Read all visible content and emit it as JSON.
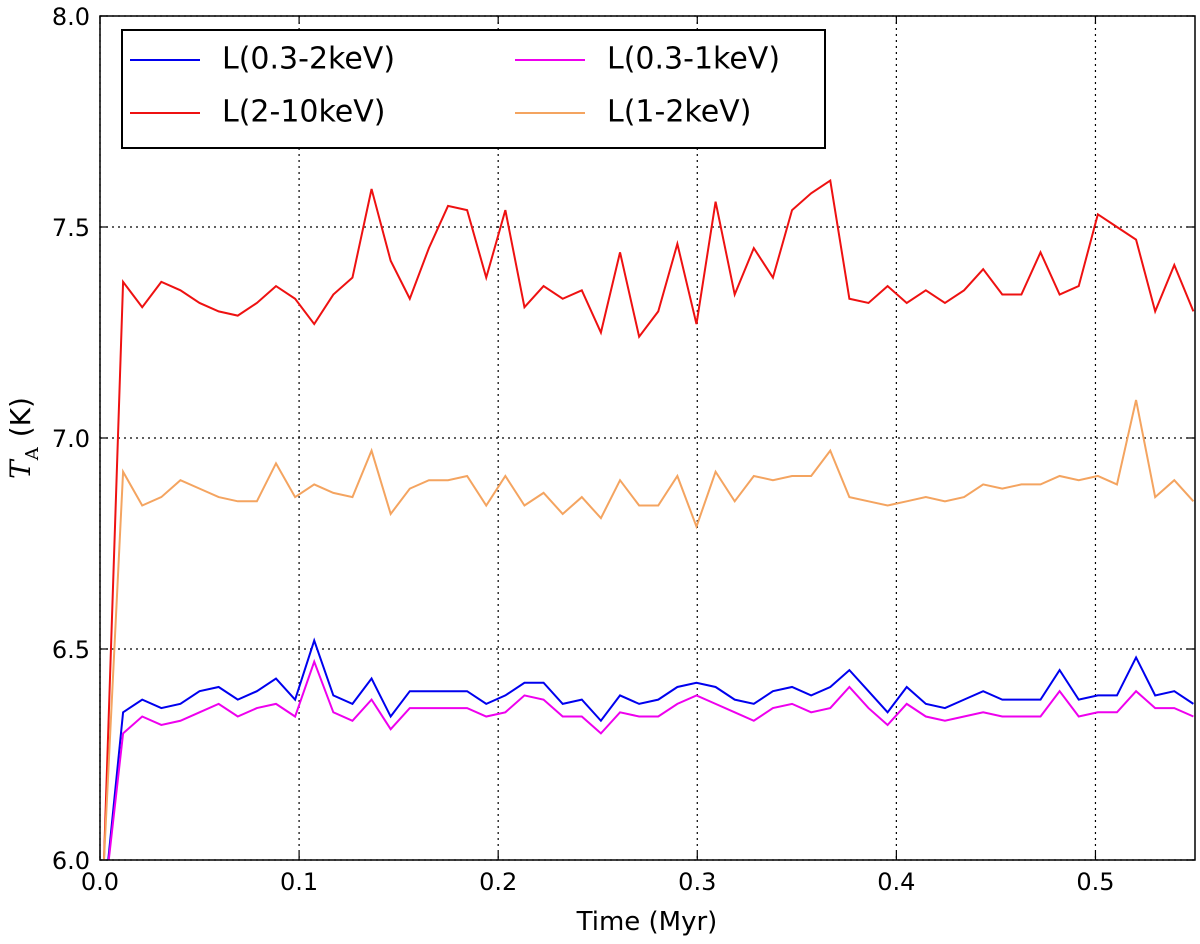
{
  "chart_data": {
    "type": "line",
    "xlabel": "Time (Myr)",
    "ylabel": {
      "symbol": "T",
      "subscript": "A",
      "unit": "(K)"
    },
    "x": [
      0.002,
      0.0116,
      0.0212,
      0.0308,
      0.0404,
      0.05,
      0.0596,
      0.0692,
      0.0788,
      0.0884,
      0.098,
      0.1076,
      0.1172,
      0.1268,
      0.1364,
      0.146,
      0.1556,
      0.1652,
      0.1748,
      0.1844,
      0.194,
      0.2036,
      0.2132,
      0.2228,
      0.2324,
      0.242,
      0.2516,
      0.2612,
      0.2708,
      0.2804,
      0.29,
      0.2996,
      0.3092,
      0.3188,
      0.3284,
      0.338,
      0.3476,
      0.3572,
      0.3668,
      0.3764,
      0.386,
      0.3956,
      0.4052,
      0.4148,
      0.4244,
      0.434,
      0.4436,
      0.4532,
      0.4628,
      0.4724,
      0.482,
      0.4916,
      0.5012,
      0.5108,
      0.5204,
      0.53,
      0.5396,
      0.5492
    ],
    "series": [
      {
        "name": "L(0.3-2keV)",
        "color": "#0000ee",
        "values": [
          5.9,
          6.35,
          6.38,
          6.36,
          6.37,
          6.4,
          6.41,
          6.38,
          6.4,
          6.43,
          6.38,
          6.52,
          6.39,
          6.37,
          6.43,
          6.34,
          6.4,
          6.4,
          6.4,
          6.4,
          6.37,
          6.39,
          6.42,
          6.42,
          6.37,
          6.38,
          6.33,
          6.39,
          6.37,
          6.38,
          6.41,
          6.42,
          6.41,
          6.38,
          6.37,
          6.4,
          6.41,
          6.39,
          6.41,
          6.45,
          6.4,
          6.35,
          6.41,
          6.37,
          6.36,
          6.38,
          6.4,
          6.38,
          6.38,
          6.38,
          6.45,
          6.38,
          6.39,
          6.39,
          6.48,
          6.39,
          6.4,
          6.37
        ]
      },
      {
        "name": "L(2-10keV)",
        "color": "#ee1111",
        "values": [
          6.0,
          7.37,
          7.31,
          7.37,
          7.35,
          7.32,
          7.3,
          7.29,
          7.32,
          7.36,
          7.33,
          7.27,
          7.34,
          7.38,
          7.59,
          7.42,
          7.33,
          7.45,
          7.55,
          7.54,
          7.38,
          7.54,
          7.31,
          7.36,
          7.33,
          7.35,
          7.25,
          7.44,
          7.24,
          7.3,
          7.46,
          7.27,
          7.56,
          7.34,
          7.45,
          7.38,
          7.54,
          7.58,
          7.61,
          7.33,
          7.32,
          7.36,
          7.32,
          7.35,
          7.32,
          7.35,
          7.4,
          7.34,
          7.34,
          7.44,
          7.34,
          7.36,
          7.53,
          7.5,
          7.47,
          7.3,
          7.41,
          7.3
        ]
      },
      {
        "name": "L(0.3-1keV)",
        "color": "#ee00ee",
        "values": [
          5.9,
          6.3,
          6.34,
          6.32,
          6.33,
          6.35,
          6.37,
          6.34,
          6.36,
          6.37,
          6.34,
          6.47,
          6.35,
          6.33,
          6.38,
          6.31,
          6.36,
          6.36,
          6.36,
          6.36,
          6.34,
          6.35,
          6.39,
          6.38,
          6.34,
          6.34,
          6.3,
          6.35,
          6.34,
          6.34,
          6.37,
          6.39,
          6.37,
          6.35,
          6.33,
          6.36,
          6.37,
          6.35,
          6.36,
          6.41,
          6.36,
          6.32,
          6.37,
          6.34,
          6.33,
          6.34,
          6.35,
          6.34,
          6.34,
          6.34,
          6.4,
          6.34,
          6.35,
          6.35,
          6.4,
          6.36,
          6.36,
          6.34
        ]
      },
      {
        "name": "L(1-2keV)",
        "color": "#f4a460",
        "values": [
          6.0,
          6.92,
          6.84,
          6.86,
          6.9,
          6.88,
          6.86,
          6.85,
          6.85,
          6.94,
          6.86,
          6.89,
          6.87,
          6.86,
          6.97,
          6.82,
          6.88,
          6.9,
          6.9,
          6.91,
          6.84,
          6.91,
          6.84,
          6.87,
          6.82,
          6.86,
          6.81,
          6.9,
          6.84,
          6.84,
          6.91,
          6.79,
          6.92,
          6.85,
          6.91,
          6.9,
          6.91,
          6.91,
          6.97,
          6.86,
          6.85,
          6.84,
          6.85,
          6.86,
          6.85,
          6.86,
          6.89,
          6.88,
          6.89,
          6.89,
          6.91,
          6.9,
          6.91,
          6.89,
          7.09,
          6.86,
          6.9,
          6.85
        ]
      }
    ],
    "xlim": [
      0,
      0.55
    ],
    "ylim": [
      6,
      8
    ],
    "xticks": [
      {
        "value": 0,
        "label": "0.0"
      },
      0.1,
      0.2,
      0.3,
      0.4,
      0.5
    ],
    "yticks": [
      {
        "value": 6,
        "label": "6.0"
      },
      6.5,
      {
        "value": 7,
        "label": "7.0"
      },
      7.5,
      {
        "value": 8,
        "label": "8.0"
      }
    ],
    "grid": true,
    "legend": "upper left",
    "legend_columns": 2
  }
}
